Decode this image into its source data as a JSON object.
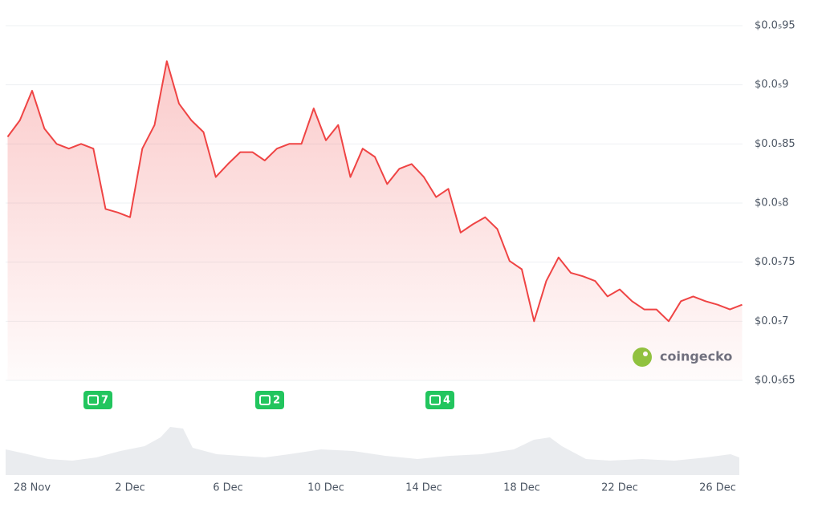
{
  "chart_data": {
    "type": "line",
    "categories": [
      null,
      null,
      "28 Nov",
      null,
      null,
      null,
      null,
      null,
      null,
      null,
      "2 Dec",
      null,
      null,
      null,
      null,
      null,
      null,
      null,
      "6 Dec",
      null,
      null,
      null,
      null,
      null,
      null,
      null,
      "10 Dec",
      null,
      null,
      null,
      null,
      null,
      null,
      null,
      "14 Dec",
      null,
      null,
      null,
      null,
      null,
      null,
      null,
      "18 Dec",
      null,
      null,
      null,
      null,
      null,
      null,
      null,
      "22 Dec",
      null,
      null,
      null,
      null,
      null,
      null,
      null,
      "26 Dec",
      null,
      null
    ],
    "series": [
      {
        "color": "#ef4444",
        "values": [
          8.56e-07,
          8.7e-07,
          8.95e-07,
          8.63e-07,
          8.5e-07,
          8.46e-07,
          8.5e-07,
          8.46e-07,
          7.95e-07,
          7.92e-07,
          7.88e-07,
          8.46e-07,
          8.66e-07,
          9.2e-07,
          8.84e-07,
          8.7e-07,
          8.6e-07,
          8.22e-07,
          8.33e-07,
          8.43e-07,
          8.43e-07,
          8.36e-07,
          8.46e-07,
          8.5e-07,
          8.5e-07,
          8.8e-07,
          8.53e-07,
          8.66e-07,
          8.22e-07,
          8.46e-07,
          8.39e-07,
          8.16e-07,
          8.29e-07,
          8.33e-07,
          8.22e-07,
          8.05e-07,
          8.12e-07,
          7.75e-07,
          7.82e-07,
          7.88e-07,
          7.78e-07,
          7.51e-07,
          7.44e-07,
          7e-07,
          7.34e-07,
          7.54e-07,
          7.41e-07,
          7.38e-07,
          7.34e-07,
          7.21e-07,
          7.27e-07,
          7.17e-07,
          7.1e-07,
          7.1e-07,
          7e-07,
          7.17e-07,
          7.21e-07,
          7.17e-07,
          7.14e-07,
          7.1e-07,
          7.14e-07
        ]
      }
    ],
    "ylim": [
      6.5e-07,
      9.5e-07
    ],
    "yticks": [
      {
        "value": 6.5e-07,
        "label": "$0.0₅65"
      },
      {
        "value": 7e-07,
        "label": "$0.0₅7"
      },
      {
        "value": 7.5e-07,
        "label": "$0.0₅75"
      },
      {
        "value": 8e-07,
        "label": "$0.0₅8"
      },
      {
        "value": 8.5e-07,
        "label": "$0.0₅85"
      },
      {
        "value": 9e-07,
        "label": "$0.0₅9"
      },
      {
        "value": 9.5e-07,
        "label": "$0.0₅95"
      }
    ],
    "grid": true,
    "news_markers": [
      7,
      2,
      4
    ],
    "watermark": "coingecko"
  }
}
